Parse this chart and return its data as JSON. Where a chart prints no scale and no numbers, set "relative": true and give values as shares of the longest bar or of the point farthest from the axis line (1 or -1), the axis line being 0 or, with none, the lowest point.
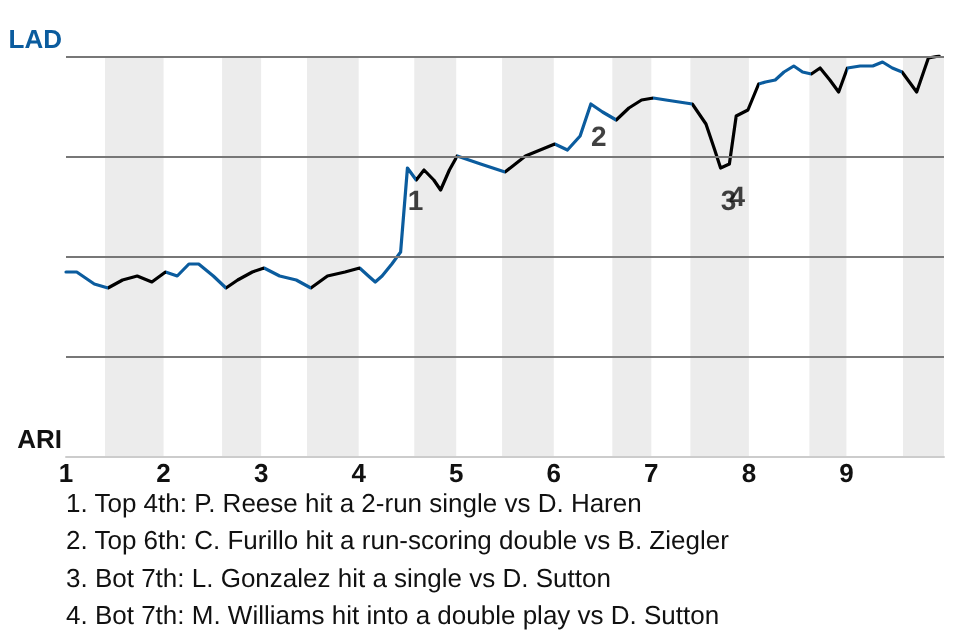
{
  "chart_data": {
    "type": "line",
    "x": [
      1.0,
      1.11,
      1.29,
      1.43,
      1.58,
      1.73,
      1.88,
      2.02,
      2.14,
      2.26,
      2.36,
      2.51,
      2.64,
      2.76,
      2.91,
      3.03,
      3.19,
      3.36,
      3.51,
      3.68,
      3.86,
      4.01,
      4.1,
      4.17,
      4.24,
      4.34,
      4.43,
      4.5,
      4.59,
      4.67,
      4.77,
      4.84,
      4.93,
      5.01,
      5.25,
      5.5,
      5.71,
      6.01,
      6.14,
      6.27,
      6.38,
      6.5,
      6.64,
      6.77,
      6.9,
      7.02,
      7.15,
      7.42,
      7.56,
      7.65,
      7.71,
      7.8,
      7.87,
      7.99,
      8.1,
      8.17,
      8.27,
      8.36,
      8.46,
      8.55,
      8.64,
      8.73,
      8.83,
      8.92,
      9.01,
      9.14,
      9.27,
      9.37,
      9.47,
      9.57,
      9.72,
      9.84,
      9.95
    ],
    "series": [
      {
        "color": "#0b5c9e",
        "values": [
          0.46,
          0.46,
          0.43,
          0.42,
          0.44,
          0.45,
          0.435,
          0.46,
          0.45,
          0.48,
          0.48,
          0.45,
          0.42,
          0.44,
          0.46,
          0.47,
          0.45,
          0.44,
          0.42,
          0.45,
          0.46,
          0.47,
          0.45,
          0.435,
          0.45,
          0.48,
          0.51,
          0.72,
          0.69,
          0.715,
          0.69,
          0.665,
          0.715,
          0.75,
          0.73,
          0.71,
          0.75,
          0.78,
          0.765,
          0.8,
          0.88,
          0.86,
          0.84,
          0.87,
          0.89,
          0.895,
          0.89,
          0.88,
          0.83,
          0.765,
          0.72,
          0.73,
          0.85,
          0.865,
          0.93,
          0.935,
          0.94,
          0.96,
          0.975,
          0.96,
          0.955,
          0.97,
          0.94,
          0.91,
          0.97,
          0.975,
          0.975,
          0.985,
          0.97,
          0.96,
          0.91,
          0.995,
          1.0
        ],
        "colors": [
          "#0b5c9e",
          "#0b5c9e",
          "#0b5c9e",
          "#000000",
          "#000000",
          "#000000",
          "#000000",
          "#0b5c9e",
          "#0b5c9e",
          "#0b5c9e",
          "#0b5c9e",
          "#0b5c9e",
          "#000000",
          "#000000",
          "#000000",
          "#0b5c9e",
          "#0b5c9e",
          "#0b5c9e",
          "#000000",
          "#000000",
          "#000000",
          "#0b5c9e",
          "#0b5c9e",
          "#0b5c9e",
          "#0b5c9e",
          "#0b5c9e",
          "#0b5c9e",
          "#0b5c9e",
          "#000000",
          "#000000",
          "#000000",
          "#000000",
          "#000000",
          "#0b5c9e",
          "#0b5c9e",
          "#000000",
          "#000000",
          "#0b5c9e",
          "#0b5c9e",
          "#0b5c9e",
          "#0b5c9e",
          "#0b5c9e",
          "#000000",
          "#000000",
          "#000000",
          "#0b5c9e",
          "#0b5c9e",
          "#000000",
          "#000000",
          "#000000",
          "#000000",
          "#000000",
          "#000000",
          "#000000",
          "#0b5c9e",
          "#0b5c9e",
          "#0b5c9e",
          "#0b5c9e",
          "#0b5c9e",
          "#0b5c9e",
          "#000000",
          "#000000",
          "#000000",
          "#000000",
          "#0b5c9e",
          "#0b5c9e",
          "#0b5c9e",
          "#0b5c9e",
          "#0b5c9e",
          "#000000",
          "#000000",
          "#000000",
          "#000000"
        ]
      }
    ],
    "relative": true,
    "xlim": [
      1,
      10
    ],
    "xticks": [
      1,
      2,
      3,
      4,
      5,
      6,
      7,
      8,
      9
    ],
    "marker": "none",
    "ref_lines": [
      {
        "axis": "y",
        "value": 0.25,
        "color": "#777777"
      },
      {
        "axis": "y",
        "value": 0.5,
        "color": "#777777"
      },
      {
        "axis": "y",
        "value": 0.75,
        "color": "#777777"
      },
      {
        "axis": "y",
        "value": 1,
        "color": "#777777"
      }
    ],
    "bands": [
      {
        "axis": "x",
        "from": 1.4,
        "to": 2,
        "color": "#ececec"
      },
      {
        "axis": "x",
        "from": 2.6,
        "to": 3,
        "color": "#ececec"
      },
      {
        "axis": "x",
        "from": 3.47,
        "to": 4,
        "color": "#ececec"
      },
      {
        "axis": "x",
        "from": 4.57,
        "to": 5,
        "color": "#ececec"
      },
      {
        "axis": "x",
        "from": 5.47,
        "to": 6,
        "color": "#ececec"
      },
      {
        "axis": "x",
        "from": 6.6,
        "to": 7,
        "color": "#ececec"
      },
      {
        "axis": "x",
        "from": 7.4,
        "to": 8,
        "color": "#ececec"
      },
      {
        "axis": "x",
        "from": 8.62,
        "to": 9,
        "color": "#ececec"
      },
      {
        "axis": "x",
        "from": 9.58,
        "to": 10,
        "color": "#ececec"
      }
    ],
    "annotations": [
      "LAD",
      "ARI",
      {
        "text": "1",
        "x": 4.5,
        "y": 0.72
      },
      {
        "text": "2",
        "x": 6.38,
        "y": 0.88
      },
      {
        "text": "3",
        "x": 7.71,
        "y": 0.72
      },
      {
        "text": "4",
        "x": 7.8,
        "y": 0.73
      },
      "1. Top 4th: P. Reese hit a 2-run single vs D. Haren",
      "2. Top 6th: C. Furillo hit a run-scoring double vs B. Ziegler",
      "3. Bot 7th: L. Gonzalez hit a single vs D. Sutton",
      "4. Bot 7th: M. Williams hit into a double play vs D. Sutton"
    ]
  }
}
